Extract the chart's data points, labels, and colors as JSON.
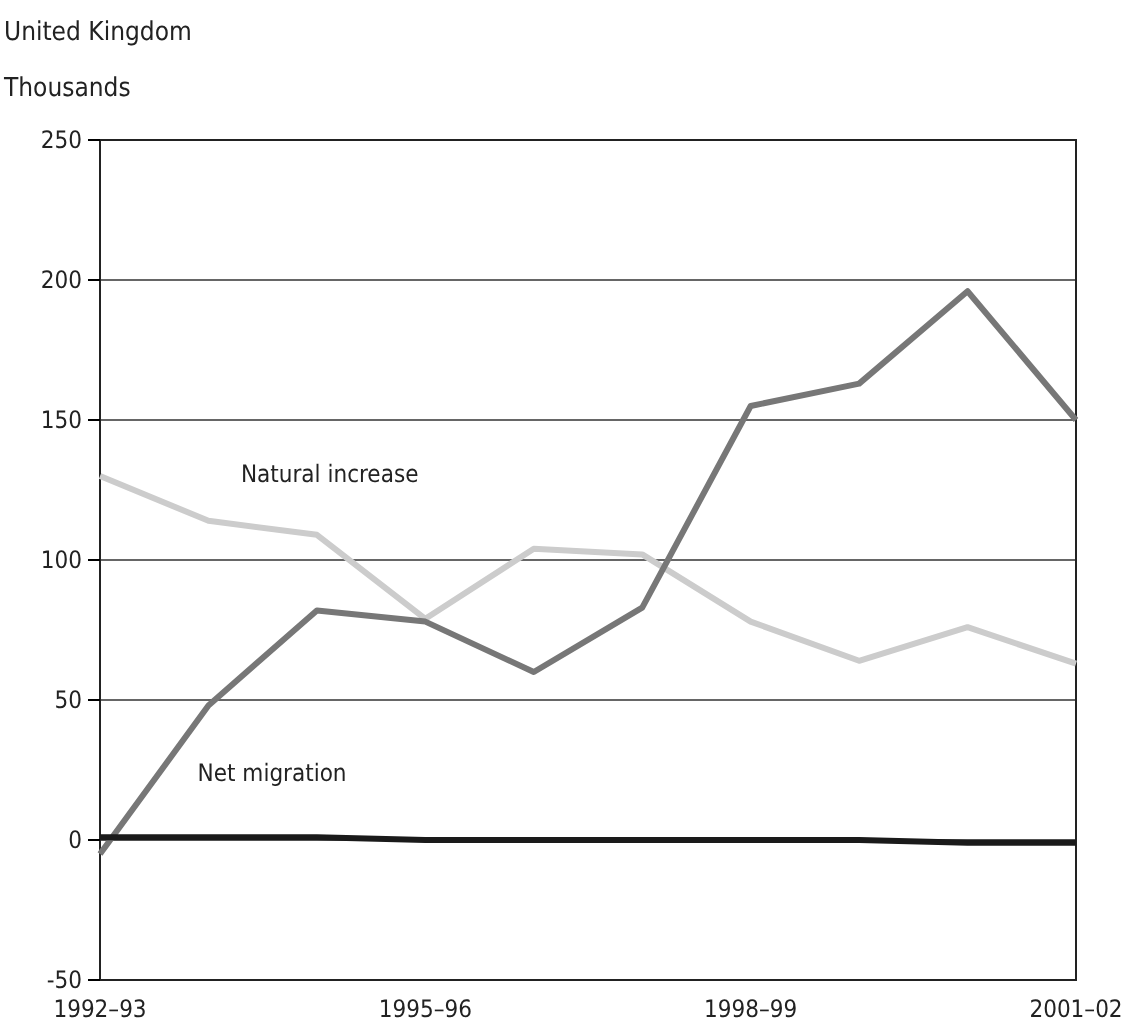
{
  "chart_data": {
    "type": "line",
    "title": "United Kingdom",
    "ylabel": "Thousands",
    "categories": [
      "1992–93",
      null,
      null,
      "1995–96",
      null,
      null,
      "1998–99",
      null,
      null,
      "2001–02"
    ],
    "series": [
      {
        "name": "Natural increase",
        "color": "#cccccc",
        "values": [
          130,
          114,
          109,
          79,
          104,
          102,
          78,
          64,
          76,
          63
        ]
      },
      {
        "name": "Net migration",
        "color": "#777777",
        "values": [
          -5,
          48,
          82,
          78,
          60,
          83,
          155,
          163,
          196,
          150
        ]
      },
      {
        "color": "#1a1a1a",
        "values": [
          1,
          1,
          1,
          0,
          0,
          0,
          0,
          0,
          -1,
          -1
        ]
      }
    ],
    "ylim": [
      -50,
      250
    ],
    "yticks": [
      -50,
      0,
      50,
      100,
      150,
      200,
      250
    ],
    "grid": "y",
    "marker": "none",
    "line_style": "solid"
  }
}
